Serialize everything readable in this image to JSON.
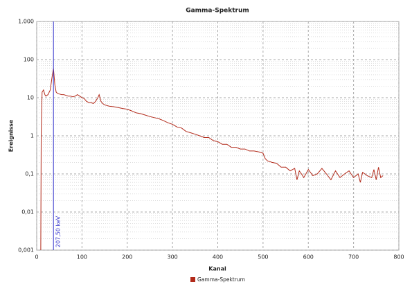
{
  "chart_data": {
    "type": "line",
    "title": "Gamma-Spektrum",
    "xlabel": "Kanal",
    "ylabel": "Ereignisse",
    "xlim": [
      0,
      800
    ],
    "xticks": [
      0,
      100,
      200,
      300,
      400,
      500,
      600,
      700,
      800
    ],
    "ylim": [
      0.001,
      1000
    ],
    "ylog": true,
    "grid": true,
    "yticks": [
      {
        "value": 0.001,
        "label": "0,001"
      },
      {
        "value": 0.01,
        "label": "0,01"
      },
      {
        "value": 0.1,
        "label": "0,1"
      },
      1,
      10,
      100,
      {
        "value": 1000,
        "label": "1.000"
      }
    ],
    "x": [
      9,
      10,
      12,
      15,
      18,
      20,
      25,
      30,
      34,
      37,
      40,
      43,
      46,
      50,
      55,
      60,
      65,
      70,
      75,
      80,
      85,
      90,
      95,
      100,
      105,
      110,
      115,
      120,
      125,
      130,
      135,
      138,
      142,
      146,
      150,
      160,
      170,
      180,
      190,
      200,
      210,
      220,
      230,
      240,
      250,
      260,
      270,
      280,
      290,
      300,
      310,
      320,
      330,
      340,
      350,
      360,
      370,
      380,
      390,
      400,
      410,
      420,
      430,
      440,
      450,
      460,
      470,
      480,
      490,
      500,
      505,
      510,
      520,
      530,
      540,
      550,
      560,
      570,
      575,
      580,
      585,
      590,
      600,
      610,
      620,
      630,
      640,
      650,
      660,
      670,
      680,
      690,
      700,
      710,
      715,
      720,
      730,
      740,
      745,
      750,
      755,
      760,
      765
    ],
    "series": [
      {
        "name": "Gamma-Spektrum",
        "color": "#b22a1a",
        "values": [
          0.001,
          1.2,
          14,
          16,
          12,
          11,
          12,
          16,
          35,
          58,
          22,
          14,
          13,
          12.5,
          12,
          12,
          11.5,
          11,
          11,
          10.5,
          11,
          12,
          11,
          10,
          9.5,
          8,
          7.5,
          7.5,
          7,
          8,
          10,
          12,
          8,
          7,
          6.5,
          6,
          5.8,
          5.5,
          5.2,
          5,
          4.5,
          4,
          3.8,
          3.5,
          3.2,
          3,
          2.8,
          2.5,
          2.2,
          2,
          1.7,
          1.6,
          1.3,
          1.2,
          1.1,
          1,
          0.9,
          0.9,
          0.75,
          0.7,
          0.6,
          0.6,
          0.5,
          0.5,
          0.45,
          0.45,
          0.4,
          0.4,
          0.38,
          0.35,
          0.25,
          0.22,
          0.2,
          0.19,
          0.15,
          0.15,
          0.12,
          0.14,
          0.07,
          0.12,
          0.1,
          0.08,
          0.13,
          0.09,
          0.1,
          0.14,
          0.1,
          0.07,
          0.12,
          0.08,
          0.1,
          0.12,
          0.08,
          0.1,
          0.06,
          0.11,
          0.09,
          0.08,
          0.13,
          0.07,
          0.15,
          0.08,
          0.09
        ]
      }
    ],
    "marker": {
      "x": 37,
      "label": "207,50 keV",
      "color": "#3333cc"
    }
  }
}
